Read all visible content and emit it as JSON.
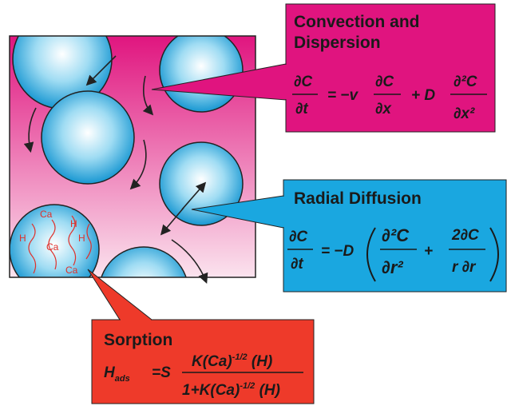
{
  "convection": {
    "title_lines": [
      "Convection and",
      "Dispersion"
    ],
    "terms": [
      "∂C",
      "∂t",
      "= −v",
      "∂C",
      "∂x",
      "+ D",
      "∂²C",
      "∂x²"
    ]
  },
  "radial": {
    "title": "Radial Diffusion",
    "terms": [
      "∂C",
      "∂t",
      "= −D",
      "∂²C",
      "∂r²",
      "+",
      "2∂C",
      "r ∂r"
    ]
  },
  "sorption": {
    "title": "Sorption",
    "lhs": "H",
    "lhs_subscript": "ads",
    "equals": "=S",
    "numerator": [
      "K(Ca)",
      "-1/2",
      " (H)"
    ],
    "denominator": [
      "1+K(Ca)",
      "-1/2",
      " (H)"
    ]
  },
  "molecule_labels": [
    "Ca",
    "H",
    "H",
    "Ca",
    "H",
    "Ca"
  ]
}
